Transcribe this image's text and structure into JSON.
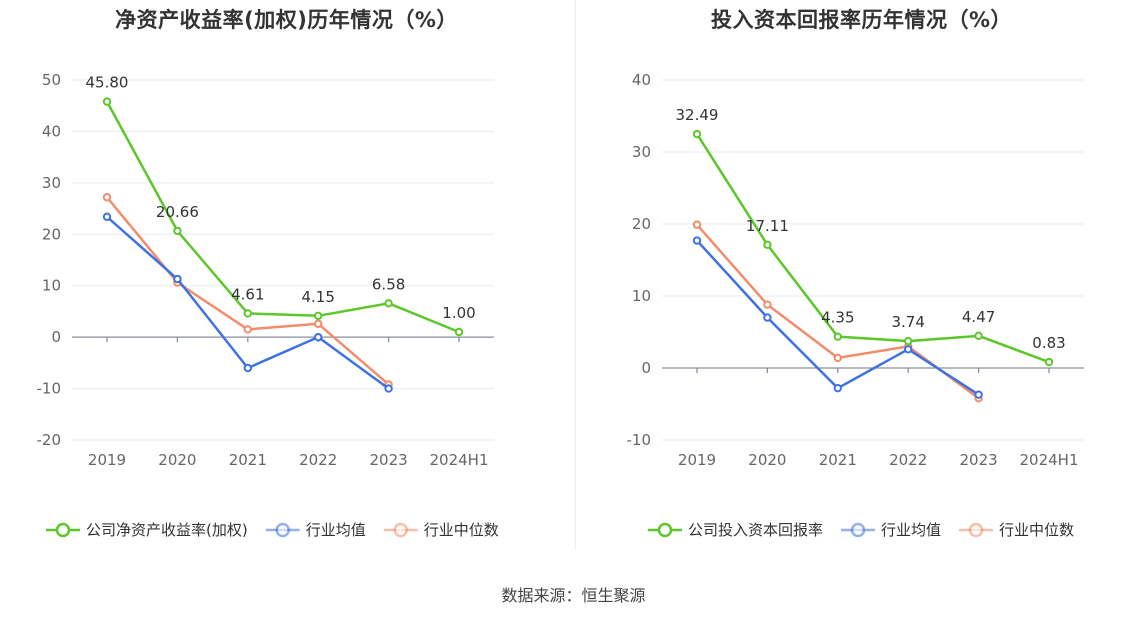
{
  "source_label": "数据来源：恒生聚源",
  "chart_data": [
    {
      "type": "line",
      "title": "净资产收益率(加权)历年情况（%）",
      "categories": [
        "2019",
        "2020",
        "2021",
        "2022",
        "2023",
        "2024H1"
      ],
      "ylim": [
        -20,
        50
      ],
      "yticks": [
        -20,
        -10,
        0,
        10,
        20,
        30,
        40,
        50
      ],
      "grid": true,
      "legend_position": "bottom",
      "series": [
        {
          "name": "公司净资产收益率(加权)",
          "color": "#5cc72a",
          "values": [
            45.8,
            20.66,
            4.61,
            4.15,
            6.58,
            1.0
          ],
          "labels": [
            "45.80",
            "20.66",
            "4.61",
            "4.15",
            "6.58",
            "1.00"
          ]
        },
        {
          "name": "行业均值",
          "color": "#3f72e0",
          "values": [
            23.4,
            11.3,
            -6.0,
            0.0,
            -10.0,
            null
          ]
        },
        {
          "name": "行业中位数",
          "color": "#f28c6b",
          "values": [
            27.2,
            10.6,
            1.5,
            2.6,
            -9.2,
            null
          ]
        }
      ]
    },
    {
      "type": "line",
      "title": "投入资本回报率历年情况（%）",
      "categories": [
        "2019",
        "2020",
        "2021",
        "2022",
        "2023",
        "2024H1"
      ],
      "ylim": [
        -10,
        40
      ],
      "yticks": [
        -10,
        0,
        10,
        20,
        30,
        40
      ],
      "grid": true,
      "legend_position": "bottom",
      "series": [
        {
          "name": "公司投入资本回报率",
          "color": "#5cc72a",
          "values": [
            32.49,
            17.11,
            4.35,
            3.74,
            4.47,
            0.83
          ],
          "labels": [
            "32.49",
            "17.11",
            "4.35",
            "3.74",
            "4.47",
            "0.83"
          ]
        },
        {
          "name": "行业均值",
          "color": "#3f72e0",
          "values": [
            17.7,
            7.0,
            -2.8,
            2.6,
            -3.7,
            null
          ]
        },
        {
          "name": "行业中位数",
          "color": "#f28c6b",
          "values": [
            19.9,
            8.8,
            1.4,
            3.0,
            -4.2,
            null
          ]
        }
      ]
    }
  ]
}
